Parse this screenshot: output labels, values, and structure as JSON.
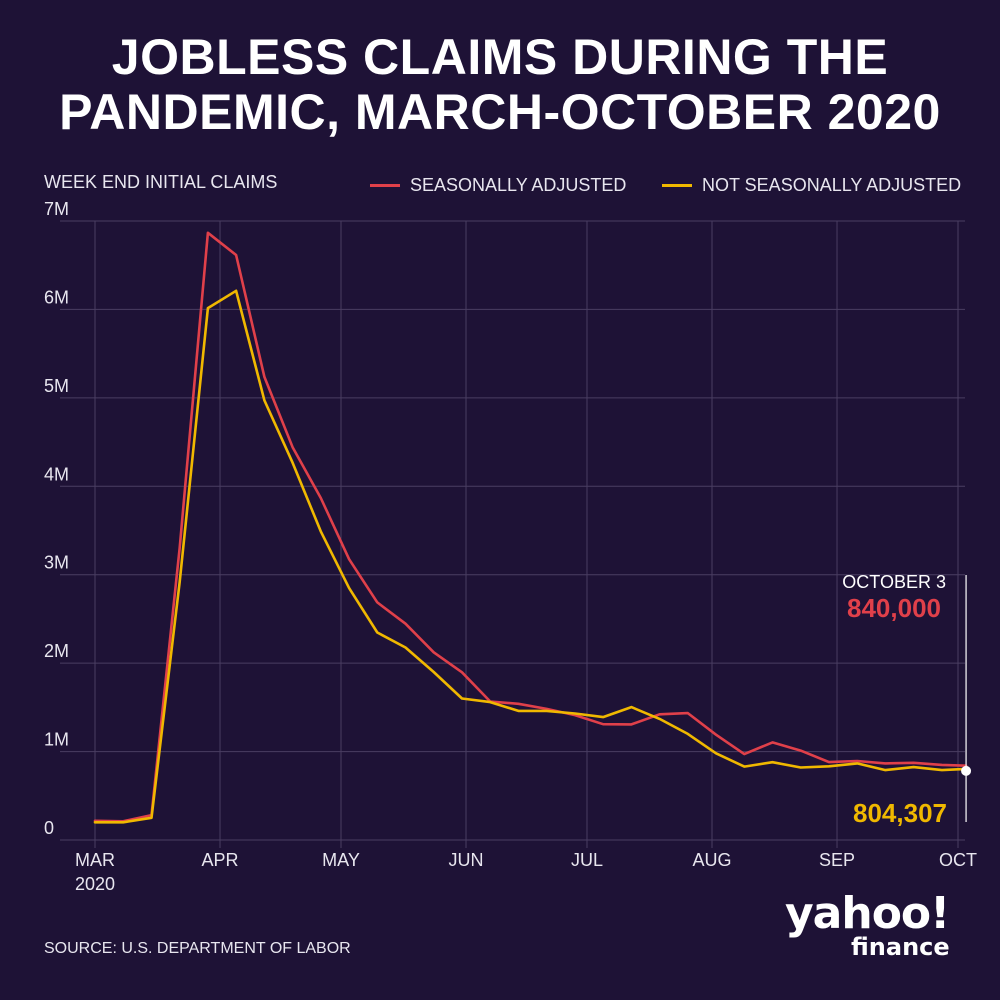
{
  "title_lines": [
    "JOBLESS CLAIMS DURING THE",
    "PANDEMIC, MARCH-OCTOBER 2020"
  ],
  "source": "SOURCE:  U.S. DEPARTMENT OF LABOR",
  "logo": {
    "line1": "yahoo!",
    "line2": "finance"
  },
  "colors": {
    "background": "#1e1236",
    "seasonal": "#e0404a",
    "not_seasonal": "#f0b800",
    "grid": "#4a3e62"
  },
  "chart_data": {
    "type": "line",
    "ylabel": "WEEK END INITIAL CLAIMS",
    "ylim": [
      0,
      7000000
    ],
    "y_ticks": [
      {
        "value": 0,
        "label": "0"
      },
      {
        "value": 1000000,
        "label": "1M"
      },
      {
        "value": 2000000,
        "label": "2M"
      },
      {
        "value": 3000000,
        "label": "3M"
      },
      {
        "value": 4000000,
        "label": "4M"
      },
      {
        "value": 5000000,
        "label": "5M"
      },
      {
        "value": 6000000,
        "label": "6M"
      },
      {
        "value": 7000000,
        "label": "7M"
      }
    ],
    "xlim": [
      "2020-03-01",
      "2020-10-01"
    ],
    "x_ticks": [
      {
        "date": "2020-03-01",
        "label": "MAR",
        "sublabel": "2020"
      },
      {
        "date": "2020-04-01",
        "label": "APR"
      },
      {
        "date": "2020-05-01",
        "label": "MAY"
      },
      {
        "date": "2020-06-01",
        "label": "JUN"
      },
      {
        "date": "2020-07-01",
        "label": "JUL"
      },
      {
        "date": "2020-08-01",
        "label": "AUG"
      },
      {
        "date": "2020-09-01",
        "label": "SEP"
      },
      {
        "date": "2020-10-01",
        "label": "OCT"
      }
    ],
    "grid": true,
    "legend_position": "top-right",
    "x": [
      "2020-03-01",
      "2020-03-08",
      "2020-03-15",
      "2020-03-22",
      "2020-03-29",
      "2020-04-05",
      "2020-04-12",
      "2020-04-19",
      "2020-04-26",
      "2020-05-03",
      "2020-05-10",
      "2020-05-17",
      "2020-05-24",
      "2020-05-31",
      "2020-06-07",
      "2020-06-14",
      "2020-06-21",
      "2020-06-28",
      "2020-07-05",
      "2020-07-12",
      "2020-07-19",
      "2020-07-26",
      "2020-08-02",
      "2020-08-09",
      "2020-08-16",
      "2020-08-23",
      "2020-08-30",
      "2020-09-06",
      "2020-09-13",
      "2020-09-20",
      "2020-09-27",
      "2020-10-03"
    ],
    "series": [
      {
        "name": "SEASONALLY ADJUSTED",
        "color": "#e0404a",
        "values": [
          217000,
          211000,
          282000,
          3307000,
          6867000,
          6615000,
          5237000,
          4442000,
          3867000,
          3176000,
          2687000,
          2446000,
          2123000,
          1897000,
          1566000,
          1540000,
          1482000,
          1413000,
          1310000,
          1307000,
          1422000,
          1435000,
          1191000,
          971000,
          1104000,
          1011000,
          881000,
          893000,
          866000,
          873000,
          849000,
          840000
        ]
      },
      {
        "name": "NOT SEASONALLY ADJUSTED",
        "color": "#f0b800",
        "values": [
          200000,
          200000,
          251000,
          2920000,
          6015000,
          6211000,
          4971000,
          4267000,
          3490000,
          2849000,
          2347000,
          2177000,
          1900000,
          1600000,
          1560000,
          1460000,
          1460000,
          1430000,
          1390000,
          1503000,
          1370000,
          1200000,
          980000,
          830000,
          880000,
          820000,
          833000,
          866000,
          790000,
          824000,
          790000,
          804307
        ]
      }
    ],
    "annotations": [
      {
        "date": "2020-10-03",
        "label": "OCTOBER 3",
        "value_sa": "840,000",
        "value_nsa": "804,307"
      }
    ]
  }
}
